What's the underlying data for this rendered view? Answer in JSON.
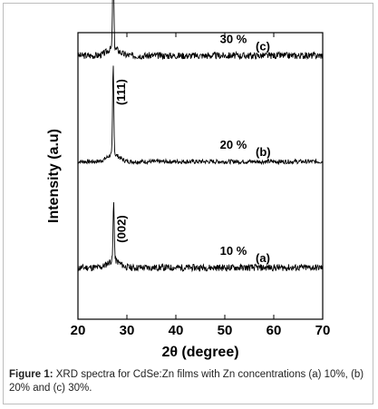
{
  "chart_data": {
    "type": "line",
    "xlabel_main": "2θ",
    "xlabel_unit": " (degree)",
    "ylabel": "Intensity (a.u)",
    "xlim": [
      20,
      70
    ],
    "x_ticks": [
      "20",
      "30",
      "40",
      "50",
      "60",
      "70"
    ],
    "grid": false,
    "series": [
      {
        "panel": "(c)",
        "concentration": "30 %",
        "peak_label": "(111)",
        "peak_position": 27.2,
        "baseline": 0.92,
        "peak_height": 15.5,
        "noise": 0.55,
        "noise_seed": 3
      },
      {
        "panel": "(b)",
        "concentration": "20 %",
        "peak_label": "(111)",
        "peak_position": 27.2,
        "baseline": 0.55,
        "peak_height": 14.5,
        "noise": 0.35,
        "noise_seed": 7
      },
      {
        "panel": "(a)",
        "concentration": "10 %",
        "peak_label": "(002)",
        "peak_position": 27.3,
        "baseline": 0.18,
        "peak_height": 9.5,
        "noise": 0.55,
        "noise_seed": 11
      }
    ]
  },
  "caption": {
    "label": "Figure 1:",
    "text": " XRD spectra for CdSe:Zn films with Zn concentrations (a) 10%, (b) 20% and (c) 30%."
  }
}
